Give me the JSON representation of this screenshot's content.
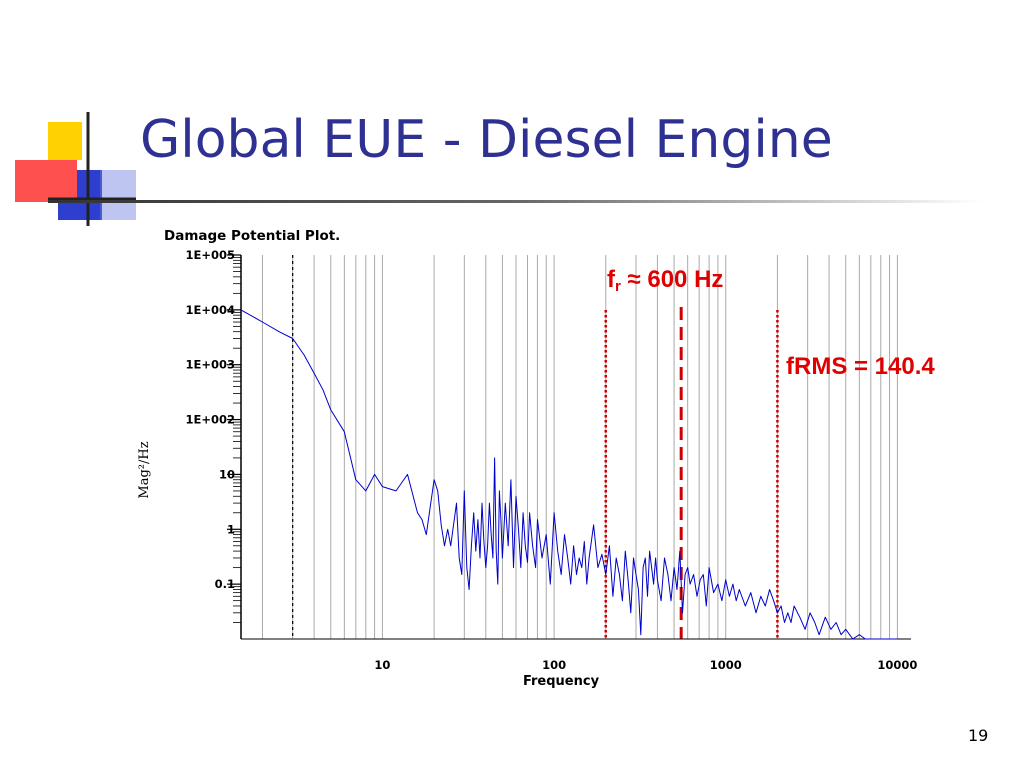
{
  "slide": {
    "title": "Global EUE - Diesel Engine",
    "page_number": "19"
  },
  "annotations": {
    "fr_base": "f",
    "fr_sub": "r",
    "fr_rest": " ≈ 600 Hz",
    "frms": "fRMS = 140.4"
  },
  "colors": {
    "title": "#2e3192",
    "series": "#0000cc",
    "annotation": "#e00000",
    "deco_yellow": "#ffd200",
    "deco_red": "#ff3a3a",
    "deco_blue": "#2e3fd0"
  },
  "chart_data": {
    "type": "line",
    "title": "Damage Potential Plot.",
    "xlabel": "Frequency",
    "ylabel": "Mag²/Hz",
    "x_scale": "log",
    "y_scale": "log",
    "xlim": [
      1.5,
      12000
    ],
    "ylim": [
      0.01,
      100000
    ],
    "x_ticks": [
      {
        "value": 10,
        "label": "10"
      },
      {
        "value": 100,
        "label": "100"
      },
      {
        "value": 1000,
        "label": "1000"
      },
      {
        "value": 10000,
        "label": "10000"
      }
    ],
    "y_ticks": [
      {
        "value": 100000,
        "label": "1E+005"
      },
      {
        "value": 10000,
        "label": "1E+004"
      },
      {
        "value": 1000,
        "label": "1E+003"
      },
      {
        "value": 100,
        "label": "1E+002"
      },
      {
        "value": 10,
        "label": "10"
      },
      {
        "value": 1,
        "label": "1"
      },
      {
        "value": 0.1,
        "label": "0.1"
      }
    ],
    "grid": "vertical",
    "vertical_markers": [
      {
        "x": 3,
        "style": "dotted",
        "color": "#000000"
      },
      {
        "x": 200,
        "style": "dotted",
        "color": "#cc0000"
      },
      {
        "x": 550,
        "style": "dashed",
        "color": "#cc0000"
      },
      {
        "x": 2000,
        "style": "dotted",
        "color": "#cc0000"
      }
    ],
    "series": [
      {
        "x": [
          1.5,
          2,
          2.5,
          3,
          3.5,
          4,
          4.5,
          5,
          6,
          7,
          8,
          9,
          10,
          12,
          14,
          16,
          17,
          18,
          20,
          21,
          22,
          23,
          24,
          25,
          27,
          28,
          29,
          30,
          31,
          32,
          33,
          34,
          35,
          36,
          37,
          38,
          39,
          40,
          41,
          42,
          43,
          44,
          45,
          46,
          47,
          48,
          49,
          50,
          52,
          54,
          56,
          58,
          60,
          62,
          64,
          66,
          68,
          70,
          72,
          75,
          78,
          80,
          85,
          90,
          95,
          100,
          105,
          110,
          115,
          120,
          125,
          130,
          135,
          140,
          145,
          150,
          155,
          160,
          170,
          180,
          190,
          200,
          210,
          220,
          230,
          240,
          250,
          260,
          270,
          280,
          290,
          300,
          310,
          320,
          330,
          340,
          350,
          360,
          370,
          380,
          390,
          400,
          420,
          440,
          460,
          480,
          500,
          520,
          540,
          560,
          580,
          600,
          620,
          650,
          680,
          710,
          740,
          770,
          800,
          850,
          900,
          950,
          1000,
          1050,
          1100,
          1150,
          1200,
          1300,
          1400,
          1500,
          1600,
          1700,
          1800,
          1900,
          2000,
          2100,
          2200,
          2300,
          2400,
          2500,
          2700,
          2900,
          3100,
          3300,
          3500,
          3800,
          4100,
          4400,
          4700,
          5000,
          5500,
          6000,
          6500,
          7000,
          7500,
          8000,
          8500,
          9000,
          10000
        ],
        "y": [
          10000,
          6000,
          4000,
          3000,
          1500,
          700,
          350,
          150,
          60,
          8,
          5,
          10,
          6,
          5,
          10,
          2,
          1.5,
          0.8,
          8,
          5,
          1.2,
          0.5,
          1,
          0.5,
          3,
          0.3,
          0.15,
          5,
          0.2,
          0.08,
          0.5,
          2,
          0.4,
          1.5,
          0.3,
          3,
          0.6,
          0.2,
          0.5,
          3,
          0.8,
          0.3,
          20,
          0.4,
          0.1,
          5,
          1.5,
          0.3,
          3,
          0.5,
          8,
          0.2,
          4,
          1,
          0.2,
          2,
          0.5,
          0.25,
          2,
          0.5,
          0.2,
          1.5,
          0.3,
          0.8,
          0.1,
          2,
          0.4,
          0.15,
          0.8,
          0.3,
          0.1,
          0.5,
          0.15,
          0.3,
          0.2,
          0.6,
          0.1,
          0.3,
          1.2,
          0.2,
          0.35,
          0.15,
          0.5,
          0.06,
          0.3,
          0.15,
          0.05,
          0.4,
          0.12,
          0.03,
          0.3,
          0.15,
          0.08,
          0.012,
          0.2,
          0.3,
          0.06,
          0.4,
          0.2,
          0.1,
          0.3,
          0.12,
          0.05,
          0.3,
          0.15,
          0.05,
          0.2,
          0.08,
          0.4,
          0.03,
          0.15,
          0.2,
          0.1,
          0.15,
          0.06,
          0.12,
          0.15,
          0.04,
          0.2,
          0.07,
          0.1,
          0.05,
          0.12,
          0.06,
          0.1,
          0.05,
          0.08,
          0.04,
          0.07,
          0.03,
          0.06,
          0.04,
          0.08,
          0.05,
          0.03,
          0.04,
          0.02,
          0.03,
          0.02,
          0.04,
          0.025,
          0.015,
          0.03,
          0.02,
          0.012,
          0.025,
          0.015,
          0.02,
          0.012,
          0.015,
          0.01,
          0.012,
          0.01,
          0.01,
          0.01,
          0.01,
          0.01,
          0.01,
          0.01
        ]
      }
    ]
  }
}
